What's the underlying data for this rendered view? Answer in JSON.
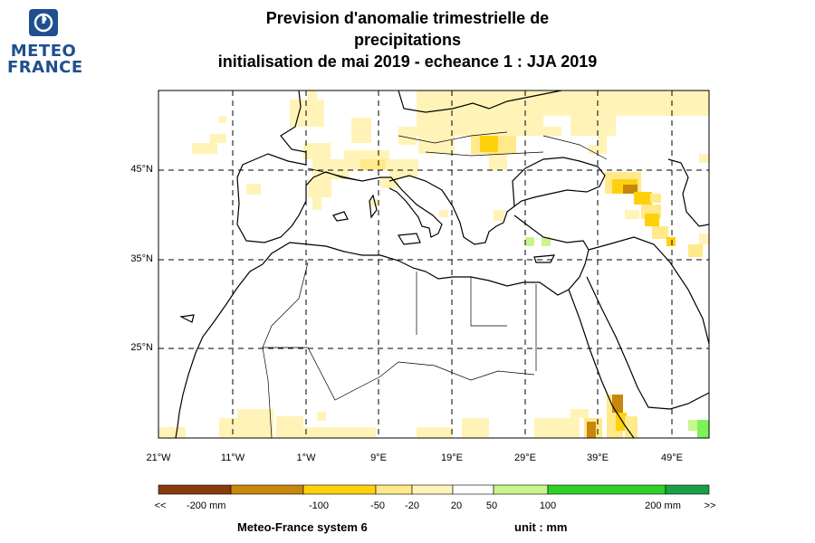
{
  "title": {
    "line1": "Prevision d'anomalie trimestrielle de",
    "line2": "precipitations",
    "line3": "initialisation de mai 2019  -  echeance 1 : JJA 2019"
  },
  "logo": {
    "line1": "METEO",
    "line2": "FRANCE"
  },
  "map": {
    "lat_ticks": [
      "45°N",
      "35°N",
      "25°N"
    ],
    "lon_ticks": [
      "21°W",
      "11°W",
      "1°W",
      "9°E",
      "19°E",
      "29°E",
      "39°E",
      "49°E"
    ]
  },
  "colorbar": {
    "colors": [
      "#8b3a0e",
      "#c7870b",
      "#e6a800",
      "#ffd10b",
      "#ffe98a",
      "#fff3b8",
      "#ffffff",
      "#c9f58a",
      "#7cf25a",
      "#2ed127",
      "#17a045",
      "#0a7c4f",
      "#075c63"
    ],
    "labels": [
      "<<",
      "-200 mm",
      "-100",
      "-50",
      "-20",
      "20",
      "50",
      "100",
      "200 mm",
      ">>"
    ]
  },
  "footer": {
    "model": "Meteo-France system 6",
    "unit": "unit :  mm"
  }
}
